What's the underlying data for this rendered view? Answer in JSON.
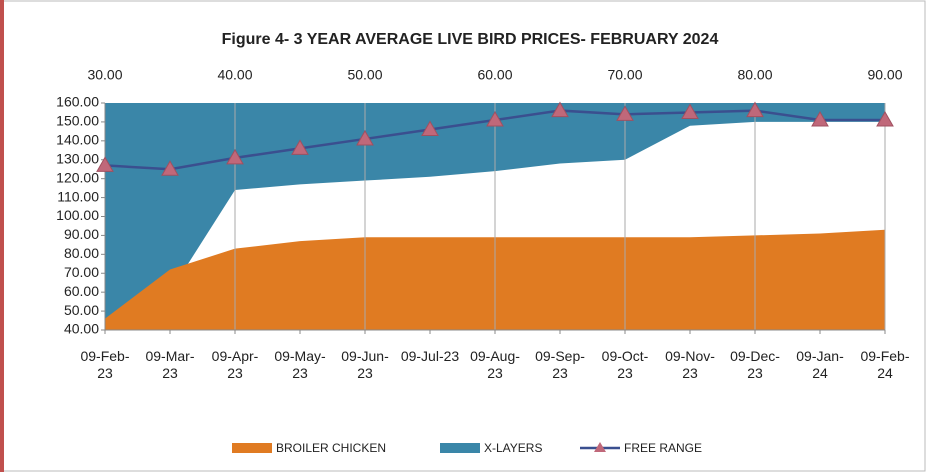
{
  "chart_data": {
    "type": "area",
    "title": "Figure 4- 3 YEAR AVERAGE LIVE BIRD PRICES- FEBRUARY 2024",
    "categories": [
      "09-Feb-23",
      "09-Mar-23",
      "09-Apr-23",
      "09-May-23",
      "09-Jun-23",
      "09-Jul-23",
      "09-Aug-23",
      "09-Sep-23",
      "09-Oct-23",
      "09-Nov-23",
      "09-Dec-23",
      "09-Jan-24",
      "09-Feb-24"
    ],
    "series": [
      {
        "name": "BROILER CHICKEN",
        "color": "#e07b22",
        "values": [
          46,
          72,
          83,
          87,
          89,
          89,
          89,
          89,
          89,
          89,
          90,
          91,
          93
        ]
      },
      {
        "name": "X-LAYERS",
        "color": "#3a86a8",
        "values": [
          42,
          60,
          114,
          117,
          119,
          121,
          124,
          128,
          130,
          148,
          150,
          150,
          150
        ]
      },
      {
        "name": "FREE RANGE",
        "color": "#c0687a",
        "values": [
          127,
          125,
          131,
          136,
          141,
          146,
          151,
          156,
          154,
          155,
          156,
          151,
          151
        ]
      }
    ],
    "ylim": [
      40,
      160
    ],
    "yticks": [
      {
        "value": 40,
        "label": "40.00"
      },
      {
        "value": 50,
        "label": "50.00"
      },
      {
        "value": 60,
        "label": "60.00"
      },
      {
        "value": 70,
        "label": "70.00"
      },
      {
        "value": 80,
        "label": "80.00"
      },
      {
        "value": 90,
        "label": "90.00"
      },
      {
        "value": 100,
        "label": "100.00"
      },
      {
        "value": 110,
        "label": "110.00"
      },
      {
        "value": 120,
        "label": "120.00"
      },
      {
        "value": 130,
        "label": "130.00"
      },
      {
        "value": 140,
        "label": "140.00"
      },
      {
        "value": 150,
        "label": "150.00"
      },
      {
        "value": 160,
        "label": "160.00"
      }
    ],
    "x2lim": [
      30,
      90
    ],
    "x2ticks": [
      {
        "value": 30,
        "label": "30.00"
      },
      {
        "value": 40,
        "label": "40.00"
      },
      {
        "value": 50,
        "label": "50.00"
      },
      {
        "value": 60,
        "label": "60.00"
      },
      {
        "value": 70,
        "label": "70.00"
      },
      {
        "value": 80,
        "label": "80.00"
      },
      {
        "value": 90,
        "label": "90.00"
      }
    ],
    "grid": true,
    "legend": "bottom"
  }
}
